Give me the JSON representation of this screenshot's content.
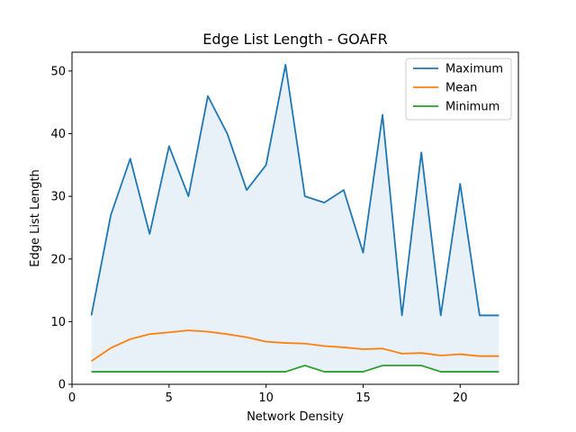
{
  "chart_data": {
    "type": "line",
    "title": "Edge List Length - GOAFR",
    "xlabel": "Network Density",
    "ylabel": "Edge List Length",
    "xlim": [
      0,
      23
    ],
    "ylim": [
      0,
      53
    ],
    "xticks": [
      0,
      5,
      10,
      15,
      20
    ],
    "yticks": [
      0,
      10,
      20,
      30,
      40,
      50
    ],
    "grid": false,
    "legend_position": "top-right",
    "x": [
      1,
      2,
      3,
      4,
      5,
      6,
      7,
      8,
      9,
      10,
      11,
      12,
      13,
      14,
      15,
      16,
      17,
      18,
      19,
      20,
      21,
      22
    ],
    "series": [
      {
        "name": "Maximum",
        "color": "#1f77b4",
        "values": [
          11,
          27,
          36,
          24,
          38,
          30,
          46,
          40,
          31,
          35,
          51,
          30,
          29,
          31,
          21,
          43,
          11,
          37,
          11,
          32,
          11,
          11
        ]
      },
      {
        "name": "Mean",
        "color": "#ff7f0e",
        "values": [
          3.7,
          5.8,
          7.2,
          8.0,
          8.3,
          8.6,
          8.4,
          8.0,
          7.5,
          6.8,
          6.6,
          6.5,
          6.1,
          5.9,
          5.6,
          5.7,
          4.9,
          5.0,
          4.6,
          4.8,
          4.5,
          4.5
        ]
      },
      {
        "name": "Minimum",
        "color": "#2ca02c",
        "values": [
          2,
          2,
          2,
          2,
          2,
          2,
          2,
          2,
          2,
          2,
          2,
          3,
          2,
          2,
          2,
          3,
          3,
          3,
          2,
          2,
          2,
          2
        ]
      }
    ],
    "fill_between": {
      "from_series": "Minimum",
      "to_series": "Maximum",
      "color": "#1f77b4",
      "opacity": 0.1
    }
  }
}
